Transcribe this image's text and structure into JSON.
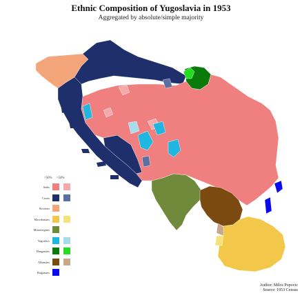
{
  "title": "Ethnic Composition of Yugoslavia in 1953",
  "subtitle": "Aggregated by absolute/simple majority",
  "legend": {
    "col_majority": ">50%",
    "col_plurality": "<50%",
    "items": [
      {
        "label": "Serbs",
        "majority": "#f08080",
        "plurality": "#f4aaaa"
      },
      {
        "label": "Croats",
        "majority": "#1f2f6b",
        "plurality": "#5b6fa0"
      },
      {
        "label": "Slovenes",
        "majority": "#f4a57a",
        "plurality": null
      },
      {
        "label": "Macedonians",
        "majority": "#f2c74a",
        "plurality": "#f7e27a"
      },
      {
        "label": "Montenegrins",
        "majority": "#6e8a3a",
        "plurality": null
      },
      {
        "label": "Yugoslavs",
        "majority": "#1fb6e0",
        "plurality": "#a8dceb"
      },
      {
        "label": "Hungarians",
        "majority": "#0a7a0a",
        "plurality": "#22dd22"
      },
      {
        "label": "Albanians",
        "majority": "#7a4a10",
        "plurality": "#c8a888"
      },
      {
        "label": "Bulgarians",
        "majority": "#0a0aee",
        "plurality": null
      }
    ]
  },
  "author": "Author: Milos Popovic",
  "source": "Source: 1953 Census"
}
